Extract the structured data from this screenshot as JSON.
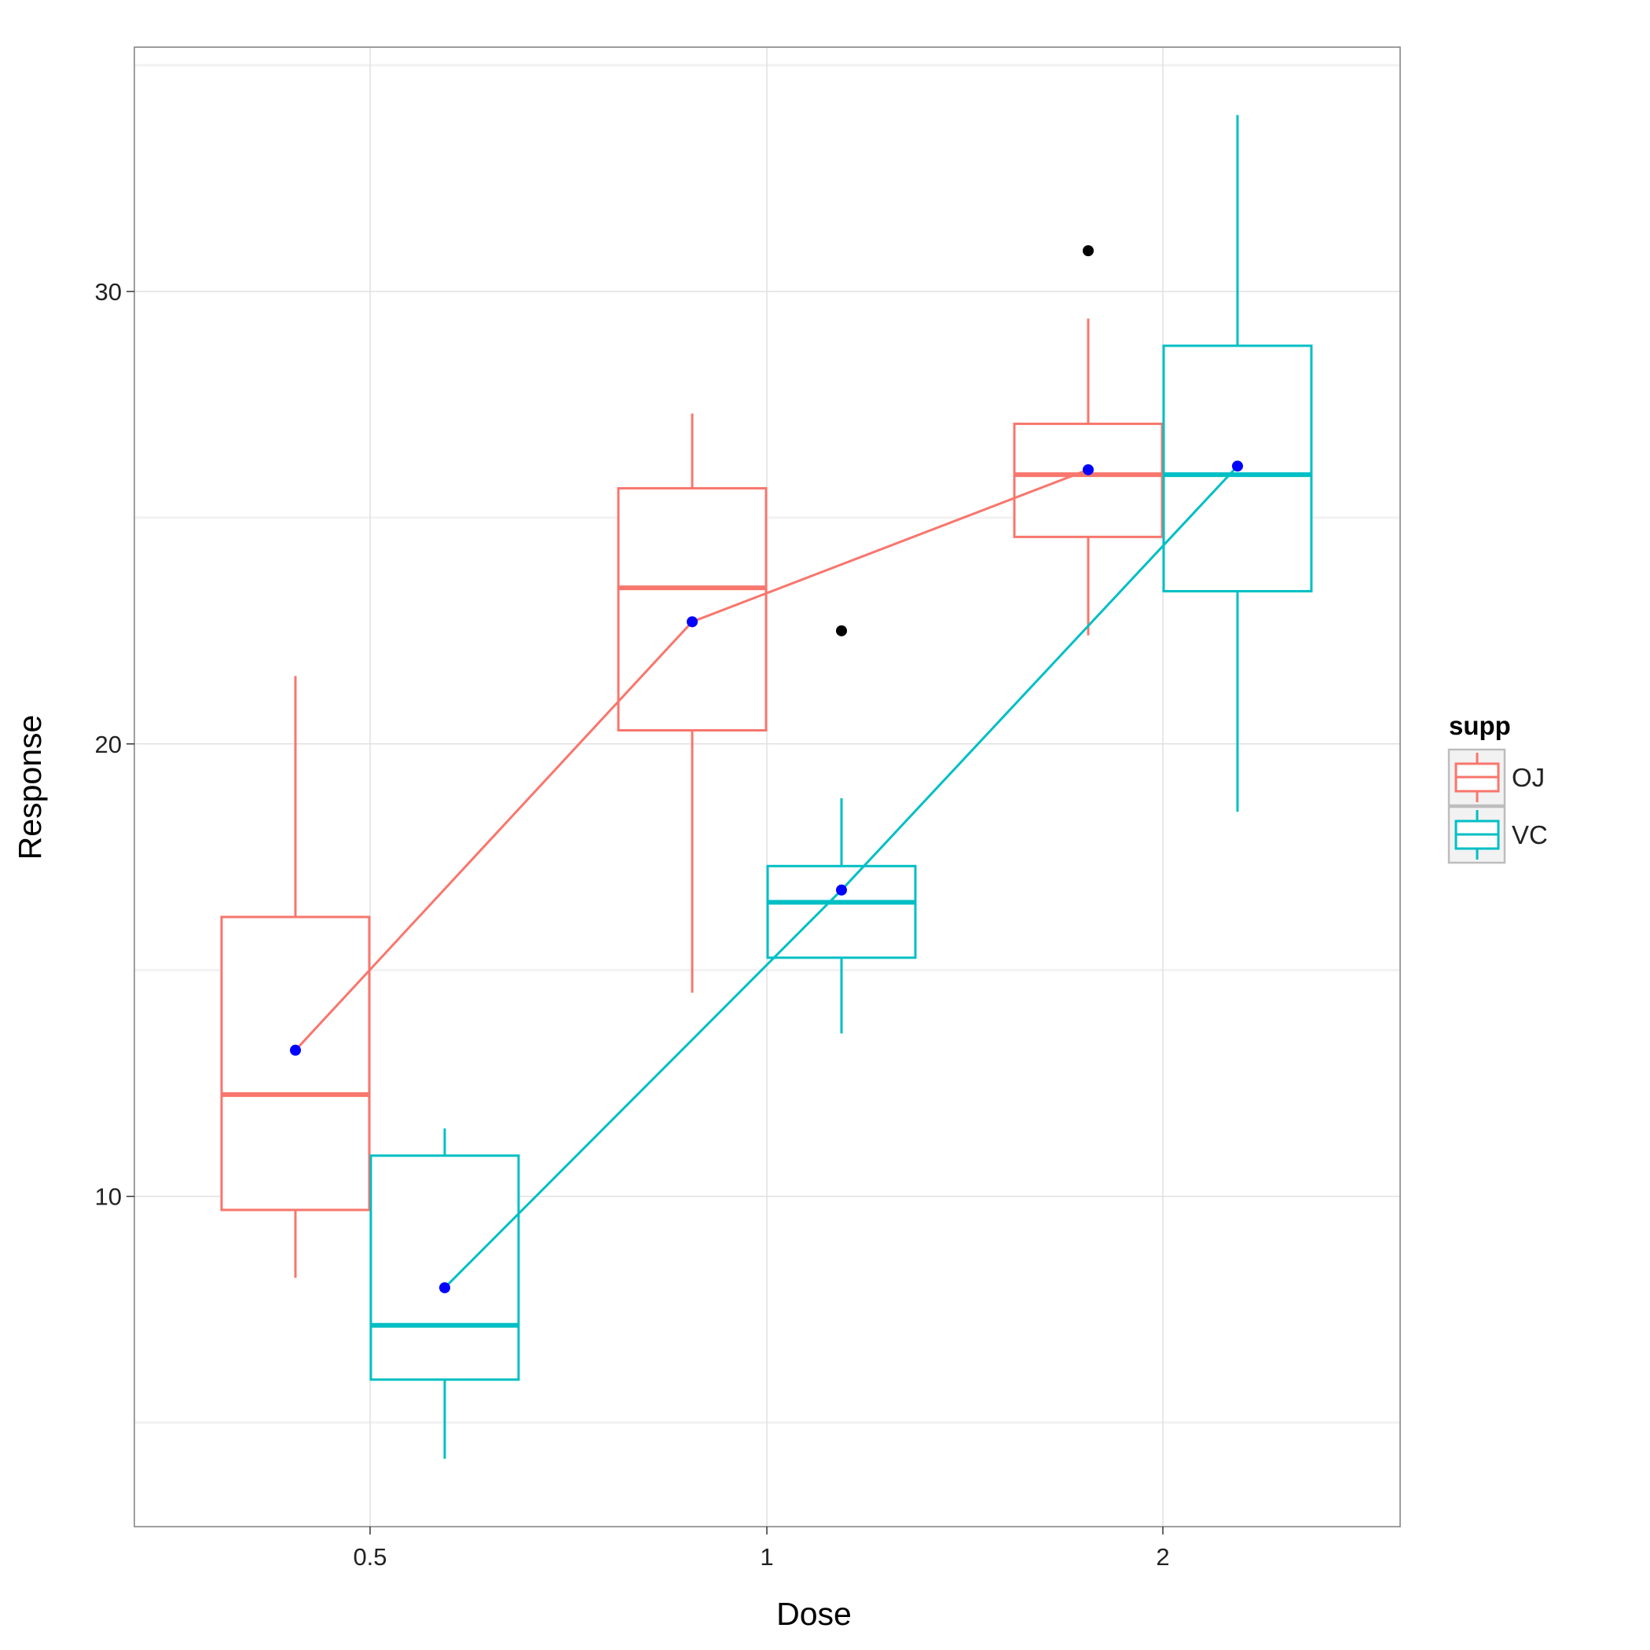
{
  "chart_data": {
    "type": "boxplot",
    "title": "",
    "xlabel": "Dose",
    "ylabel": "Response",
    "categories": [
      "0.5",
      "1",
      "2"
    ],
    "y_ticks": [
      10,
      20,
      30
    ],
    "ylim": [
      2.7,
      35.4
    ],
    "grid": true,
    "legend": {
      "title": "supp",
      "position": "right",
      "entries": [
        "OJ",
        "VC"
      ]
    },
    "series": [
      {
        "name": "OJ",
        "color": "#F8766D",
        "boxes": [
          {
            "dose": "0.5",
            "whisker_low": 8.2,
            "q1": 9.7,
            "median": 12.25,
            "q3": 16.175,
            "whisker_high": 21.5,
            "mean": 13.23,
            "outliers": []
          },
          {
            "dose": "1",
            "whisker_low": 14.5,
            "q1": 20.3,
            "median": 23.45,
            "q3": 25.65,
            "whisker_high": 27.3,
            "mean": 22.7,
            "outliers": []
          },
          {
            "dose": "2",
            "whisker_low": 22.4,
            "q1": 24.575,
            "median": 25.95,
            "q3": 27.075,
            "whisker_high": 29.4,
            "mean": 26.06,
            "outliers": [
              30.9
            ]
          }
        ]
      },
      {
        "name": "VC",
        "color": "#00BFC4",
        "boxes": [
          {
            "dose": "0.5",
            "whisker_low": 4.2,
            "q1": 5.95,
            "median": 7.15,
            "q3": 10.9,
            "whisker_high": 11.5,
            "mean": 7.98,
            "outliers": []
          },
          {
            "dose": "1",
            "whisker_low": 13.6,
            "q1": 15.275,
            "median": 16.5,
            "q3": 17.3,
            "whisker_high": 18.8,
            "mean": 16.77,
            "outliers": [
              22.5
            ]
          },
          {
            "dose": "2",
            "whisker_low": 18.5,
            "q1": 23.375,
            "median": 25.95,
            "q3": 28.8,
            "whisker_high": 33.9,
            "mean": 26.14,
            "outliers": []
          }
        ]
      }
    ],
    "mean_point_color": "#0000FF",
    "outlier_color": "#000000"
  }
}
